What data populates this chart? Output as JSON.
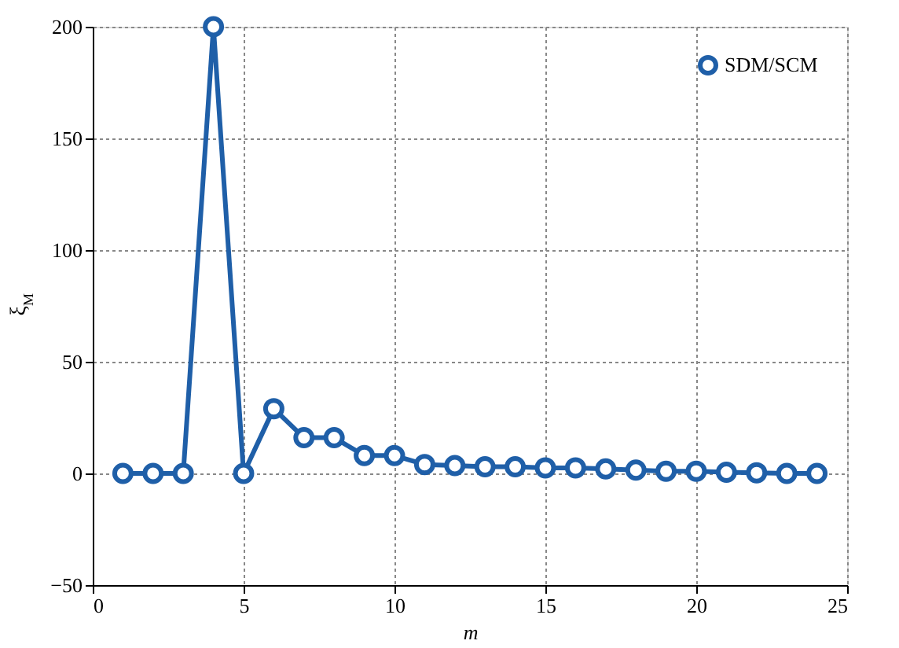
{
  "chart_data": {
    "type": "line",
    "xlabel": "m",
    "ylabel": "ξ$_{M}$",
    "x": [
      1,
      2,
      3,
      4,
      5,
      6,
      7,
      8,
      9,
      10,
      11,
      12,
      13,
      14,
      15,
      16,
      17,
      18,
      19,
      20,
      21,
      22,
      23,
      24
    ],
    "series": [
      {
        "name": "SDM/SCM",
        "color": "#1f5fa8",
        "values": [
          0,
          0,
          0,
          200,
          0,
          29,
          16,
          16,
          8,
          8,
          4,
          3.5,
          3,
          3,
          2.5,
          2.5,
          2,
          1.5,
          1,
          1,
          0.5,
          0.3,
          0,
          0
        ]
      }
    ],
    "xlim": [
      0,
      25
    ],
    "xticks": [
      0,
      5,
      10,
      15,
      20,
      25
    ],
    "ylim": [
      -50,
      200
    ],
    "yticks": [
      -50,
      0,
      50,
      100,
      150,
      200
    ],
    "grid": true,
    "legend": "top right",
    "marker": "circle",
    "line_style": "solid"
  }
}
